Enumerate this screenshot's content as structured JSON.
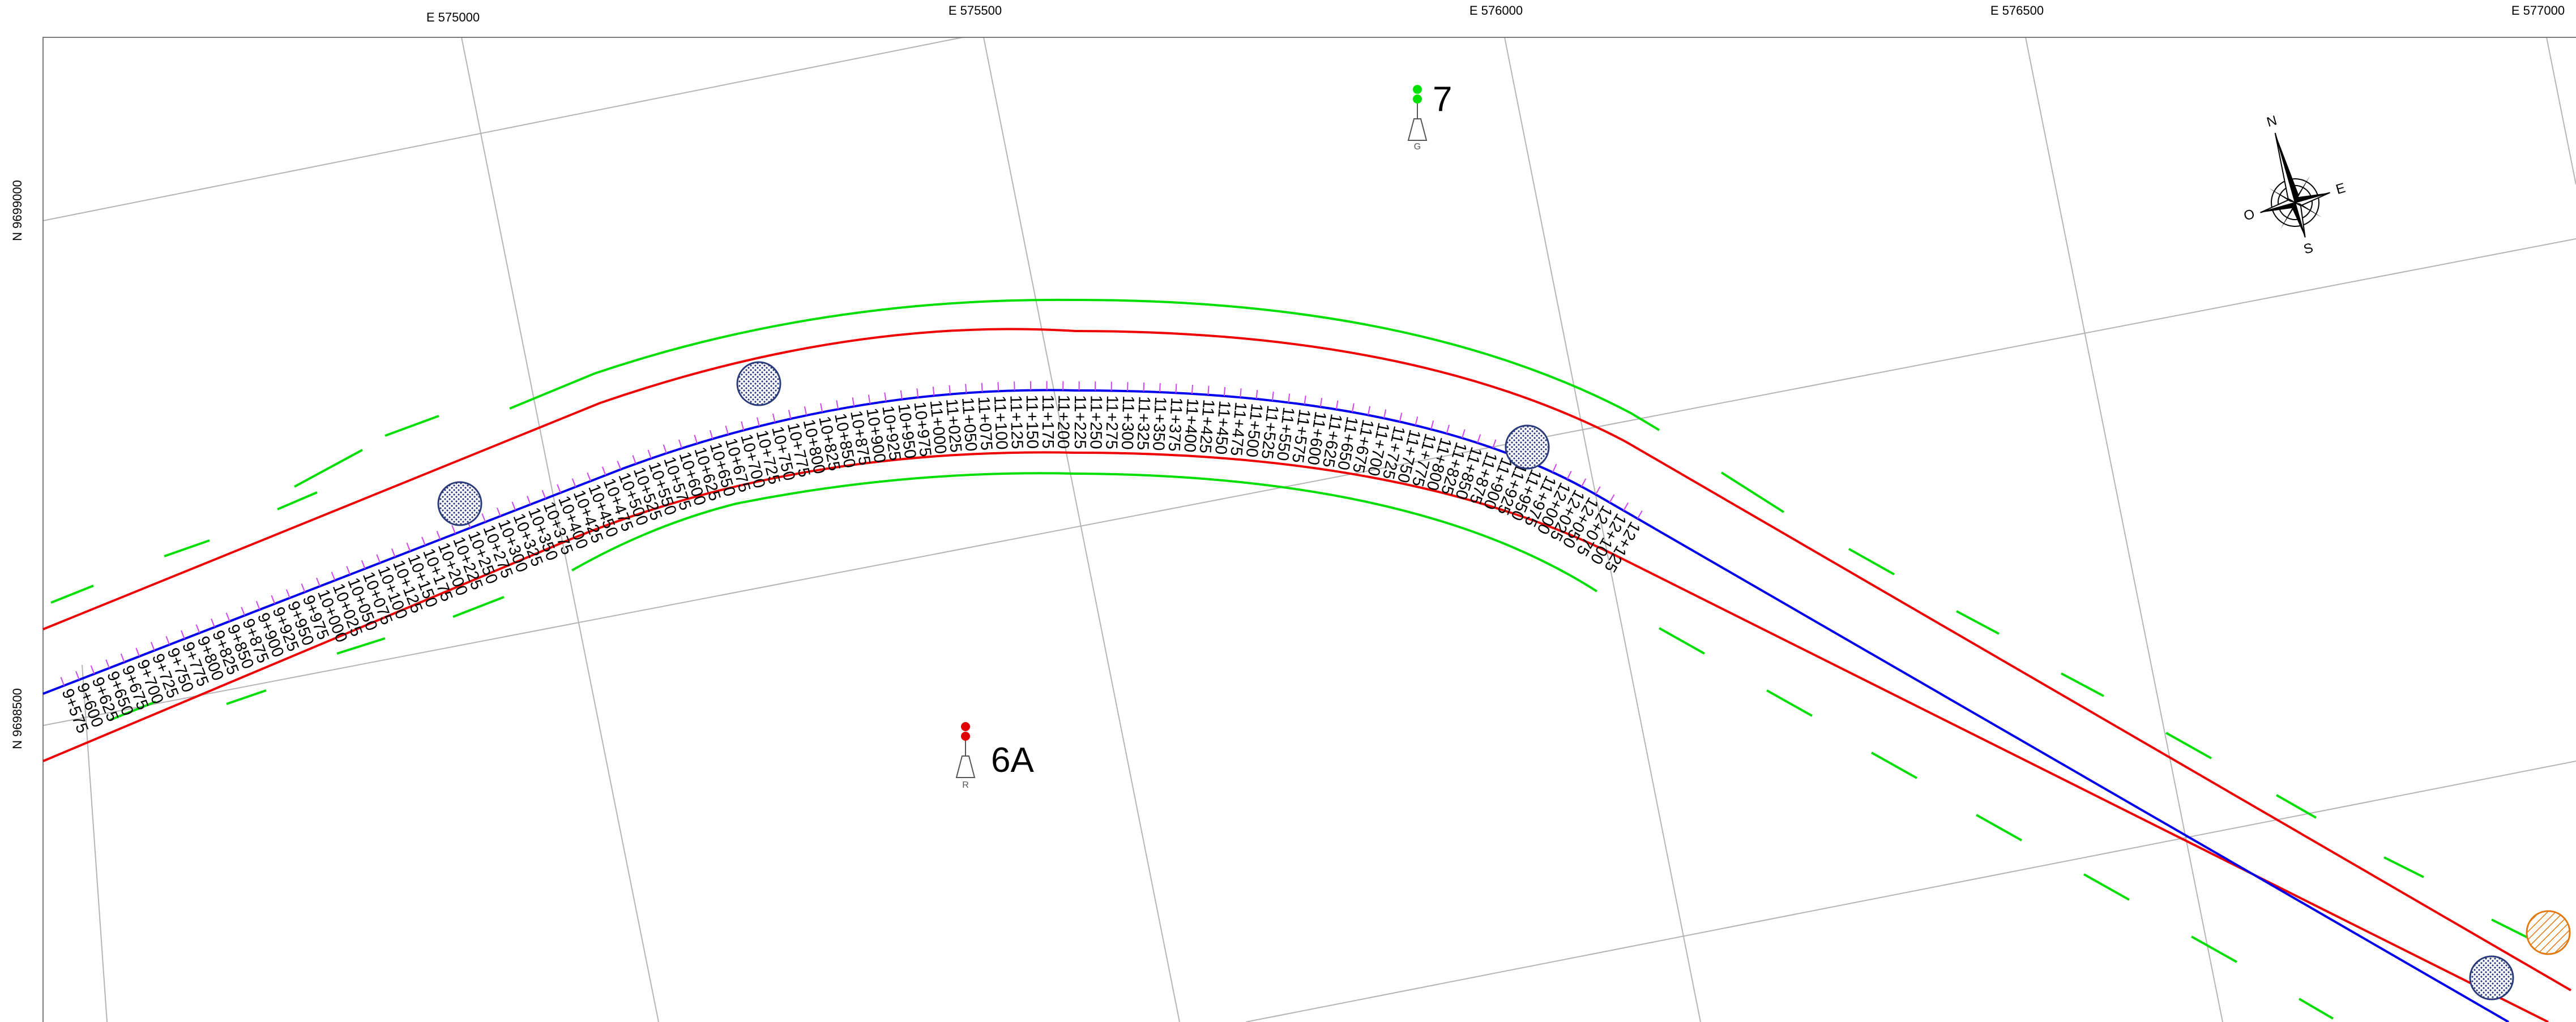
{
  "grid_labels": {
    "eastings": [
      "E 575000",
      "E 575500",
      "E 576000",
      "E 576500",
      "E 577000"
    ],
    "northings": [
      "N 9699000",
      "N 9698500"
    ]
  },
  "piers": [
    {
      "label": "7",
      "marker": "G",
      "color": "#00e000"
    },
    {
      "label": "6A",
      "marker": "R",
      "color": "#e00000"
    }
  ],
  "compass": {
    "north": "N",
    "east": "E",
    "south": "S",
    "west": "O"
  },
  "stations": [
    "9+575",
    "9+600",
    "9+625",
    "9+650",
    "9+675",
    "9+700",
    "9+725",
    "9+750",
    "9+775",
    "9+800",
    "9+825",
    "9+850",
    "9+875",
    "9+900",
    "9+925",
    "9+950",
    "9+975",
    "10+000",
    "10+025",
    "10+050",
    "10+075",
    "10+100",
    "10+125",
    "10+150",
    "10+175",
    "10+200",
    "10+225",
    "10+250",
    "10+275",
    "10+300",
    "10+325",
    "10+350",
    "10+375",
    "10+400",
    "10+425",
    "10+450",
    "10+475",
    "10+500",
    "10+525",
    "10+550",
    "10+575",
    "10+600",
    "10+625",
    "10+650",
    "10+675",
    "10+700",
    "10+725",
    "10+750",
    "10+775",
    "10+800",
    "10+825",
    "10+850",
    "10+875",
    "10+900",
    "10+925",
    "10+950",
    "10+975",
    "11+000",
    "11+025",
    "11+050",
    "11+075",
    "11+100",
    "11+125",
    "11+150",
    "11+175",
    "11+200",
    "11+225",
    "11+250",
    "11+275",
    "11+300",
    "11+325",
    "11+350",
    "11+375",
    "11+400",
    "11+425",
    "11+450",
    "11+475",
    "11+500",
    "11+525",
    "11+550",
    "11+575",
    "11+600",
    "11+625",
    "11+650",
    "11+675",
    "11+700",
    "11+725",
    "11+750",
    "11+775",
    "11+800",
    "11+825",
    "11+850",
    "11+875",
    "11+900",
    "11+925",
    "11+950",
    "11+975",
    "12+000",
    "12+025",
    "12+050",
    "12+075",
    "12+100",
    "12+125"
  ],
  "colors": {
    "axis": "#0000ee",
    "right_of_way": "#ee0000",
    "edge": "#00dd00",
    "ticks": "#cc44ee",
    "grid": "#b4b4b4",
    "frame": "#7a7a7a",
    "structure_fill": "#2a3a7a",
    "hatch": "#e07a10"
  },
  "structures": [
    {
      "name": "circle-1",
      "kind": "dotted"
    },
    {
      "name": "circle-2",
      "kind": "dotted"
    },
    {
      "name": "circle-3",
      "kind": "dotted"
    },
    {
      "name": "circle-4",
      "kind": "dotted"
    },
    {
      "name": "circle-5",
      "kind": "hatched"
    }
  ]
}
